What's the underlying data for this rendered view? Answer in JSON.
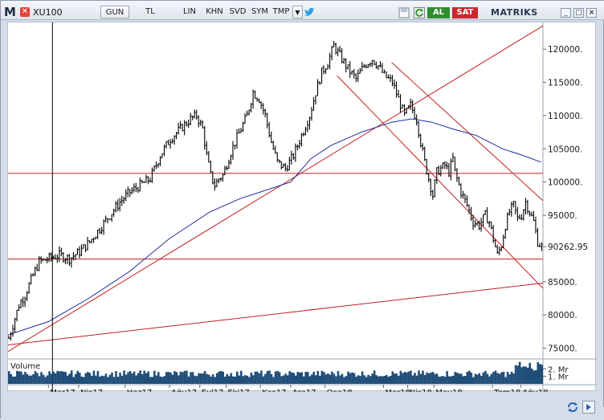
{
  "toolbar": {
    "logo_letter": "M",
    "close_glyph": "✕",
    "symbol": "XU100",
    "buttons": [
      {
        "id": "gun",
        "label": "GUN"
      },
      {
        "id": "tl",
        "label": "TL"
      },
      {
        "id": "lin",
        "label": "LIN"
      },
      {
        "id": "khn",
        "label": "KHN"
      },
      {
        "id": "svd",
        "label": "SVD"
      },
      {
        "id": "sym",
        "label": "SYM"
      },
      {
        "id": "tmp",
        "label": "TMP"
      }
    ],
    "dropdown_glyph": "▼",
    "al_label": "AL",
    "sat_label": "SAT",
    "brand": "MATRIKS",
    "icons": [
      "twitter-icon",
      "save-icon",
      "refresh-icon",
      "settings-icon",
      "minimize-icon",
      "maximize-icon",
      "close-icon"
    ]
  },
  "colors": {
    "price": "#000000",
    "ma": "#1f2aa0",
    "trend": "#c41e1e",
    "volume": "#1f4e79",
    "axis_text": "#1a1a1a",
    "crosshair": "#000000",
    "brand_red": "#c9282d",
    "brand_green": "#2f8f2f"
  },
  "chart_data": {
    "type": "line",
    "y_ticks": [
      "120000.",
      "115000.",
      "110000.",
      "105000.",
      "100000.",
      "95000.",
      "90262.95",
      "85000.",
      "80000.",
      "75000."
    ],
    "y_tick_values": [
      120000,
      115000,
      110000,
      105000,
      100000,
      95000,
      90262.95,
      85000,
      80000,
      75000
    ],
    "ylim": [
      73500,
      124000
    ],
    "last_value": "90262.95",
    "x_ticks": [
      "Mar17",
      "Nis17",
      "Haz17",
      "Ağu17",
      "Eyl17",
      "Eki17",
      "Kas17",
      "Ara17",
      "Oca18",
      "Mar18",
      "Nis18",
      "May18",
      "Tem18",
      "Ağu18"
    ],
    "x_tick_index": [
      20,
      35,
      58,
      80,
      95,
      108,
      125,
      140,
      157,
      186,
      198,
      211,
      240,
      254
    ],
    "xlim": [
      0,
      265
    ],
    "price_anchors": [
      [
        0,
        76500
      ],
      [
        2,
        78500
      ],
      [
        5,
        81500
      ],
      [
        8,
        83000
      ],
      [
        12,
        86000
      ],
      [
        15,
        88000
      ],
      [
        20,
        88500
      ],
      [
        25,
        89000
      ],
      [
        30,
        88500
      ],
      [
        35,
        89500
      ],
      [
        40,
        91000
      ],
      [
        45,
        93000
      ],
      [
        50,
        95000
      ],
      [
        55,
        97000
      ],
      [
        60,
        98500
      ],
      [
        65,
        99500
      ],
      [
        70,
        100500
      ],
      [
        75,
        104000
      ],
      [
        80,
        106500
      ],
      [
        85,
        108000
      ],
      [
        90,
        109500
      ],
      [
        93,
        110000
      ],
      [
        96,
        108000
      ],
      [
        98,
        104000
      ],
      [
        100,
        101000
      ],
      [
        102,
        99500
      ],
      [
        104,
        100500
      ],
      [
        106,
        101000
      ],
      [
        110,
        104500
      ],
      [
        112,
        106000
      ],
      [
        115,
        108000
      ],
      [
        118,
        110000
      ],
      [
        121,
        113500
      ],
      [
        124,
        112500
      ],
      [
        127,
        110000
      ],
      [
        130,
        106000
      ],
      [
        133,
        103000
      ],
      [
        137,
        102000
      ],
      [
        141,
        104000
      ],
      [
        145,
        107000
      ],
      [
        149,
        110000
      ],
      [
        152,
        113500
      ],
      [
        155,
        116500
      ],
      [
        158,
        118000
      ],
      [
        161,
        120500
      ],
      [
        164,
        119000
      ],
      [
        168,
        117000
      ],
      [
        172,
        115500
      ],
      [
        176,
        117500
      ],
      [
        180,
        118500
      ],
      [
        183,
        117500
      ],
      [
        186,
        116000
      ],
      [
        190,
        115000
      ],
      [
        193,
        112500
      ],
      [
        196,
        110000
      ],
      [
        199,
        111500
      ],
      [
        202,
        109500
      ],
      [
        204,
        106000
      ],
      [
        206,
        103000
      ],
      [
        208,
        100500
      ],
      [
        210,
        98000
      ],
      [
        212,
        101500
      ],
      [
        214,
        102000
      ],
      [
        216,
        102500
      ],
      [
        218,
        101500
      ],
      [
        220,
        103500
      ],
      [
        221,
        101500
      ],
      [
        224,
        98500
      ],
      [
        227,
        96500
      ],
      [
        230,
        94000
      ],
      [
        233,
        93500
      ],
      [
        236,
        95000
      ],
      [
        238,
        94000
      ],
      [
        240,
        91500
      ],
      [
        242,
        89000
      ],
      [
        244,
        90500
      ],
      [
        246,
        93500
      ],
      [
        248,
        95500
      ],
      [
        250,
        96500
      ],
      [
        252,
        94500
      ],
      [
        254,
        95000
      ],
      [
        256,
        97000
      ],
      [
        258,
        95500
      ],
      [
        260,
        94000
      ],
      [
        262,
        91000
      ],
      [
        264,
        90262.95
      ]
    ],
    "ma_anchors": [
      [
        0,
        77000
      ],
      [
        20,
        79000
      ],
      [
        40,
        82500
      ],
      [
        60,
        86500
      ],
      [
        80,
        91500
      ],
      [
        100,
        95500
      ],
      [
        115,
        97500
      ],
      [
        128,
        98800
      ],
      [
        140,
        100000
      ],
      [
        150,
        103500
      ],
      [
        160,
        105500
      ],
      [
        175,
        107500
      ],
      [
        190,
        109000
      ],
      [
        200,
        109500
      ],
      [
        210,
        109000
      ],
      [
        220,
        108000
      ],
      [
        232,
        107000
      ],
      [
        245,
        105000
      ],
      [
        255,
        104000
      ],
      [
        264,
        103000
      ]
    ],
    "trend_lines": [
      {
        "from": [
          0,
          74500
        ],
        "to": [
          265,
          123500
        ]
      },
      {
        "from": [
          0,
          75500
        ],
        "to": [
          265,
          84800
        ]
      },
      {
        "from": [
          0,
          101300
        ],
        "to": [
          265,
          101300
        ]
      },
      {
        "from": [
          0,
          88400
        ],
        "to": [
          265,
          88400
        ]
      },
      {
        "from": [
          163,
          116000
        ],
        "to": [
          265,
          84000
        ]
      },
      {
        "from": [
          190,
          118000
        ],
        "to": [
          265,
          97200
        ]
      }
    ],
    "crosshair_x": 22,
    "volume": {
      "label": "Volume",
      "ticks": [
        "2. Mr",
        "1. Mr"
      ],
      "tick_values": [
        2,
        1
      ],
      "ylim": [
        0,
        3
      ]
    }
  }
}
